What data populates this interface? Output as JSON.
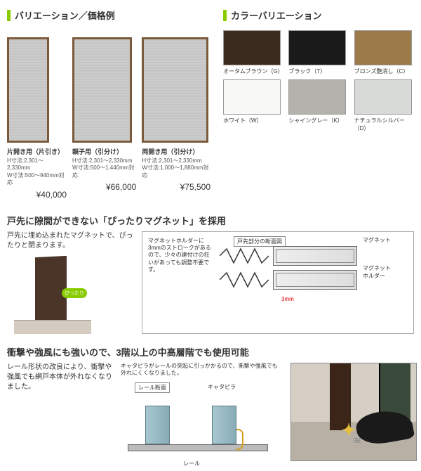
{
  "sections": {
    "variation_title": "バリエーション／価格例",
    "color_title": "カラーバリエーション"
  },
  "doors": [
    {
      "name": "片開き用（片引き）",
      "spec1": "H寸法:2,301～2,330mm",
      "spec2": "W寸法:500～940mm対応",
      "price": "¥40,000"
    },
    {
      "name": "親子用（引分け）",
      "spec1": "H寸法:2,301～2,330mm",
      "spec2": "W寸法:500～1,440mm対応",
      "price": "¥66,000"
    },
    {
      "name": "両開き用（引分け）",
      "spec1": "H寸法:2,301～2,330mm",
      "spec2": "W寸法:1,000～1,880mm対応",
      "price": "¥75,500"
    }
  ],
  "colors": [
    {
      "label": "オータムブラウン（G）",
      "hex": "#3b2a1e"
    },
    {
      "label": "ブラック（T）",
      "hex": "#1a1a1a"
    },
    {
      "label": "ブロンズ艶消し（C）",
      "hex": "#9c7a4a"
    },
    {
      "label": "ホワイト（W）",
      "hex": "#f8f8f5"
    },
    {
      "label": "シャイングレー（K）",
      "hex": "#b5b2ad"
    },
    {
      "label": "ナチュラルシルバー（D）",
      "hex": "#d8dad8"
    }
  ],
  "feature1": {
    "title": "戸先に隙間ができない「ぴったりマグネット」を採用",
    "desc": "戸先に埋め込まれたマグネットで、ぴったりと閉まります。",
    "badge": "ぴったり",
    "note": "マグネットホルダーに3mmのストロークがあるので、少々の建付けの狂いがあっても調整不要です。",
    "cross_label": "戸先部分の断面図",
    "label_magnet": "マグネット",
    "label_holder": "マグネットホルダー",
    "gap": "3mm"
  },
  "feature2": {
    "title": "衝撃や強風にも強いので、3階以上の中高層階でも使用可能",
    "desc": "レール形状の改良により、衝撃や強風でも網戸本体が外れなくなりました。",
    "note": "キャタピラがレールの突起に引っかかるので、衝撃や強風でも外れにくくなりました。",
    "label_rail": "レール断面",
    "label_cat": "キャタピラ",
    "label_rail2": "レール"
  }
}
